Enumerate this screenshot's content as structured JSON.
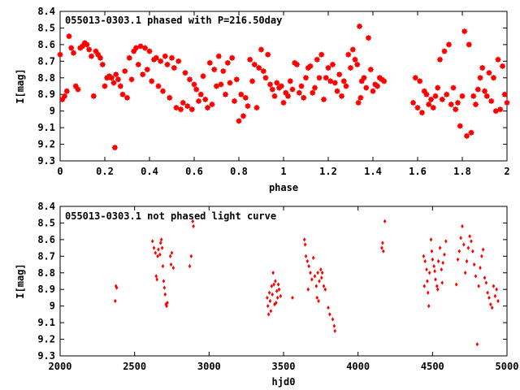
{
  "chart_data": [
    {
      "type": "scatter",
      "title": "055013-0303.1 phased with P=216.50day",
      "xlabel": "phase",
      "ylabel": "I[mag]",
      "xlim": [
        0,
        2
      ],
      "ylim": [
        9.3,
        8.4
      ],
      "y_inverted": true,
      "xticks": [
        "0",
        "0.2",
        "0.4",
        "0.6",
        "0.8",
        "1",
        "1.2",
        "1.4",
        "1.6",
        "1.8",
        "2"
      ],
      "yticks": [
        "8.4",
        "8.5",
        "8.6",
        "8.7",
        "8.8",
        "8.9",
        "9",
        "9.1",
        "9.2",
        "9.3"
      ],
      "grid": false,
      "color": "#ff0000",
      "points": [
        [
          0.0,
          8.66
        ],
        [
          0.01,
          8.93
        ],
        [
          0.02,
          8.91
        ],
        [
          0.03,
          8.88
        ],
        [
          0.04,
          8.55
        ],
        [
          0.05,
          8.62
        ],
        [
          0.06,
          8.65
        ],
        [
          0.07,
          8.85
        ],
        [
          0.08,
          8.87
        ],
        [
          0.09,
          8.62
        ],
        [
          0.1,
          8.61
        ],
        [
          0.11,
          8.59
        ],
        [
          0.12,
          8.6
        ],
        [
          0.13,
          8.63
        ],
        [
          0.14,
          8.67
        ],
        [
          0.15,
          8.91
        ],
        [
          0.16,
          8.64
        ],
        [
          0.17,
          8.66
        ],
        [
          0.18,
          8.68
        ],
        [
          0.19,
          8.72
        ],
        [
          0.2,
          8.85
        ],
        [
          0.21,
          8.8
        ],
        [
          0.22,
          8.79
        ],
        [
          0.23,
          8.8
        ],
        [
          0.24,
          8.83
        ],
        [
          0.245,
          9.22
        ],
        [
          0.25,
          8.78
        ],
        [
          0.26,
          8.81
        ],
        [
          0.27,
          8.85
        ],
        [
          0.28,
          8.9
        ],
        [
          0.29,
          8.76
        ],
        [
          0.3,
          8.92
        ],
        [
          0.31,
          8.68
        ],
        [
          0.32,
          8.81
        ],
        [
          0.33,
          8.64
        ],
        [
          0.34,
          8.62
        ],
        [
          0.35,
          8.72
        ],
        [
          0.36,
          8.61
        ],
        [
          0.37,
          8.78
        ],
        [
          0.38,
          8.62
        ],
        [
          0.39,
          8.75
        ],
        [
          0.4,
          8.64
        ],
        [
          0.41,
          8.82
        ],
        [
          0.42,
          8.69
        ],
        [
          0.43,
          8.68
        ],
        [
          0.44,
          8.85
        ],
        [
          0.45,
          8.7
        ],
        [
          0.46,
          8.88
        ],
        [
          0.47,
          8.67
        ],
        [
          0.48,
          8.72
        ],
        [
          0.49,
          8.92
        ],
        [
          0.5,
          8.68
        ],
        [
          0.51,
          8.74
        ],
        [
          0.52,
          8.98
        ],
        [
          0.53,
          8.7
        ],
        [
          0.54,
          8.99
        ],
        [
          0.55,
          8.95
        ],
        [
          0.56,
          8.77
        ],
        [
          0.57,
          8.97
        ],
        [
          0.58,
          8.81
        ],
        [
          0.59,
          8.99
        ],
        [
          0.6,
          8.84
        ],
        [
          0.61,
          8.87
        ],
        [
          0.62,
          8.94
        ],
        [
          0.63,
          8.9
        ],
        [
          0.64,
          8.79
        ],
        [
          0.65,
          8.93
        ],
        [
          0.66,
          8.98
        ],
        [
          0.67,
          8.71
        ],
        [
          0.68,
          8.96
        ],
        [
          0.69,
          8.75
        ],
        [
          0.7,
          8.85
        ],
        [
          0.71,
          8.67
        ],
        [
          0.72,
          8.84
        ],
        [
          0.73,
          8.76
        ],
        [
          0.74,
          8.9
        ],
        [
          0.75,
          8.71
        ],
        [
          0.76,
          8.83
        ],
        [
          0.77,
          8.68
        ],
        [
          0.78,
          8.94
        ],
        [
          0.79,
          8.81
        ],
        [
          0.8,
          9.06
        ],
        [
          0.81,
          8.9
        ],
        [
          0.82,
          9.03
        ],
        [
          0.83,
          8.92
        ],
        [
          0.84,
          8.97
        ],
        [
          0.85,
          8.69
        ],
        [
          0.86,
          8.82
        ],
        [
          0.87,
          8.72
        ],
        [
          0.88,
          8.98
        ],
        [
          0.89,
          8.74
        ],
        [
          0.9,
          8.63
        ],
        [
          0.91,
          8.76
        ],
        [
          0.92,
          8.8
        ],
        [
          0.93,
          8.66
        ],
        [
          0.94,
          8.84
        ],
        [
          0.95,
          8.87
        ],
        [
          0.96,
          8.91
        ],
        [
          0.97,
          8.83
        ],
        [
          0.98,
          8.86
        ],
        [
          0.99,
          8.85
        ],
        [
          1.0,
          8.95
        ],
        [
          1.01,
          8.89
        ],
        [
          1.02,
          8.91
        ],
        [
          1.03,
          8.82
        ],
        [
          1.04,
          8.87
        ],
        [
          1.05,
          8.71
        ],
        [
          1.06,
          8.72
        ],
        [
          1.07,
          8.89
        ],
        [
          1.08,
          8.85
        ],
        [
          1.09,
          8.92
        ],
        [
          1.1,
          8.8
        ],
        [
          1.11,
          8.74
        ],
        [
          1.12,
          8.73
        ],
        [
          1.13,
          8.89
        ],
        [
          1.14,
          8.86
        ],
        [
          1.15,
          8.69
        ],
        [
          1.16,
          8.8
        ],
        [
          1.17,
          8.66
        ],
        [
          1.18,
          8.93
        ],
        [
          1.19,
          8.8
        ],
        [
          1.2,
          8.74
        ],
        [
          1.21,
          8.82
        ],
        [
          1.22,
          8.72
        ],
        [
          1.23,
          8.83
        ],
        [
          1.24,
          8.88
        ],
        [
          1.25,
          8.78
        ],
        [
          1.26,
          8.91
        ],
        [
          1.27,
          8.82
        ],
        [
          1.28,
          8.85
        ],
        [
          1.29,
          8.66
        ],
        [
          1.3,
          8.74
        ],
        [
          1.31,
          8.63
        ],
        [
          1.32,
          8.69
        ],
        [
          1.33,
          8.72
        ],
        [
          1.335,
          8.95
        ],
        [
          1.34,
          8.49
        ],
        [
          1.345,
          8.92
        ],
        [
          1.35,
          8.82
        ],
        [
          1.36,
          8.8
        ],
        [
          1.37,
          8.86
        ],
        [
          1.38,
          8.56
        ],
        [
          1.39,
          8.75
        ],
        [
          1.4,
          8.88
        ],
        [
          1.41,
          8.84
        ],
        [
          1.42,
          8.85
        ],
        [
          1.43,
          8.8
        ],
        [
          1.44,
          8.81
        ],
        [
          1.45,
          8.82
        ],
        [
          1.58,
          8.95
        ],
        [
          1.59,
          8.8
        ],
        [
          1.6,
          8.98
        ],
        [
          1.61,
          8.82
        ],
        [
          1.62,
          9.01
        ],
        [
          1.63,
          8.88
        ],
        [
          1.64,
          8.9
        ],
        [
          1.65,
          8.96
        ],
        [
          1.66,
          8.93
        ],
        [
          1.67,
          8.98
        ],
        [
          1.68,
          8.91
        ],
        [
          1.69,
          8.86
        ],
        [
          1.7,
          8.69
        ],
        [
          1.71,
          8.93
        ],
        [
          1.72,
          8.64
        ],
        [
          1.73,
          8.9
        ],
        [
          1.74,
          8.6
        ],
        [
          1.75,
          8.96
        ],
        [
          1.76,
          8.86
        ],
        [
          1.77,
          8.99
        ],
        [
          1.78,
          8.95
        ],
        [
          1.79,
          9.09
        ],
        [
          1.8,
          8.91
        ],
        [
          1.81,
          8.52
        ],
        [
          1.82,
          9.15
        ],
        [
          1.83,
          8.6
        ],
        [
          1.84,
          9.13
        ],
        [
          1.85,
          8.91
        ],
        [
          1.86,
          8.96
        ],
        [
          1.87,
          8.87
        ],
        [
          1.88,
          8.8
        ],
        [
          1.89,
          8.74
        ],
        [
          1.9,
          8.88
        ],
        [
          1.91,
          8.91
        ],
        [
          1.92,
          8.77
        ],
        [
          1.93,
          8.94
        ],
        [
          1.94,
          8.8
        ],
        [
          1.95,
          9.0
        ],
        [
          1.96,
          8.69
        ],
        [
          1.97,
          8.99
        ],
        [
          1.98,
          8.73
        ],
        [
          1.99,
          8.9
        ],
        [
          2.0,
          8.95
        ]
      ]
    },
    {
      "type": "scatter",
      "title": "055013-0303.1 not phased light curve",
      "xlabel": "hjd0",
      "ylabel": "I[mag]",
      "xlim": [
        2000,
        5000
      ],
      "ylim": [
        9.3,
        8.4
      ],
      "y_inverted": true,
      "xticks": [
        "2000",
        "2500",
        "3000",
        "3500",
        "4000",
        "4500",
        "5000"
      ],
      "yticks": [
        "8.4",
        "8.5",
        "8.6",
        "8.7",
        "8.8",
        "8.9",
        "9",
        "9.1",
        "9.2",
        "9.3"
      ],
      "grid": false,
      "color": "#ff0000",
      "points": [
        [
          2370,
          8.97
        ],
        [
          2375,
          8.88
        ],
        [
          2380,
          8.89
        ],
        [
          2620,
          8.61
        ],
        [
          2630,
          8.65
        ],
        [
          2640,
          8.68
        ],
        [
          2645,
          8.82
        ],
        [
          2650,
          8.84
        ],
        [
          2655,
          8.7
        ],
        [
          2660,
          8.66
        ],
        [
          2670,
          8.69
        ],
        [
          2675,
          8.62
        ],
        [
          2680,
          8.6
        ],
        [
          2685,
          8.65
        ],
        [
          2690,
          8.76
        ],
        [
          2695,
          8.85
        ],
        [
          2700,
          8.89
        ],
        [
          2705,
          8.93
        ],
        [
          2710,
          8.99
        ],
        [
          2715,
          9.0
        ],
        [
          2720,
          8.98
        ],
        [
          2740,
          8.7
        ],
        [
          2745,
          8.75
        ],
        [
          2750,
          8.68
        ],
        [
          2760,
          8.77
        ],
        [
          2870,
          8.76
        ],
        [
          2880,
          8.7
        ],
        [
          2890,
          8.49
        ],
        [
          2895,
          8.52
        ],
        [
          3390,
          8.95
        ],
        [
          3395,
          9.0
        ],
        [
          3400,
          9.05
        ],
        [
          3405,
          8.92
        ],
        [
          3410,
          8.97
        ],
        [
          3415,
          9.03
        ],
        [
          3420,
          8.88
        ],
        [
          3425,
          8.93
        ],
        [
          3430,
          8.8
        ],
        [
          3435,
          8.87
        ],
        [
          3440,
          8.99
        ],
        [
          3445,
          8.85
        ],
        [
          3450,
          8.98
        ],
        [
          3455,
          8.91
        ],
        [
          3460,
          8.95
        ],
        [
          3465,
          8.87
        ],
        [
          3470,
          8.9
        ],
        [
          3480,
          8.94
        ],
        [
          3560,
          8.95
        ],
        [
          3640,
          8.6
        ],
        [
          3645,
          8.63
        ],
        [
          3650,
          8.7
        ],
        [
          3660,
          8.73
        ],
        [
          3665,
          8.9
        ],
        [
          3670,
          8.76
        ],
        [
          3680,
          8.8
        ],
        [
          3690,
          8.84
        ],
        [
          3700,
          8.71
        ],
        [
          3710,
          8.82
        ],
        [
          3720,
          8.88
        ],
        [
          3725,
          8.95
        ],
        [
          3730,
          8.8
        ],
        [
          3735,
          8.97
        ],
        [
          3740,
          8.85
        ],
        [
          3750,
          8.78
        ],
        [
          3755,
          8.83
        ],
        [
          3760,
          8.8
        ],
        [
          3770,
          8.88
        ],
        [
          3780,
          8.9
        ],
        [
          3800,
          9.01
        ],
        [
          3810,
          9.05
        ],
        [
          3830,
          9.08
        ],
        [
          3840,
          9.12
        ],
        [
          3845,
          9.15
        ],
        [
          4160,
          8.65
        ],
        [
          4165,
          8.62
        ],
        [
          4170,
          8.67
        ],
        [
          4180,
          8.49
        ],
        [
          4440,
          8.7
        ],
        [
          4445,
          8.88
        ],
        [
          4450,
          8.73
        ],
        [
          4460,
          8.78
        ],
        [
          4465,
          8.85
        ],
        [
          4470,
          8.92
        ],
        [
          4475,
          9.0
        ],
        [
          4480,
          8.8
        ],
        [
          4490,
          8.6
        ],
        [
          4495,
          8.67
        ],
        [
          4500,
          8.72
        ],
        [
          4510,
          8.76
        ],
        [
          4515,
          8.79
        ],
        [
          4520,
          8.84
        ],
        [
          4530,
          8.88
        ],
        [
          4535,
          8.9
        ],
        [
          4540,
          8.73
        ],
        [
          4550,
          8.65
        ],
        [
          4560,
          8.78
        ],
        [
          4565,
          8.86
        ],
        [
          4570,
          8.74
        ],
        [
          4580,
          8.69
        ],
        [
          4590,
          8.61
        ],
        [
          4660,
          8.87
        ],
        [
          4670,
          8.72
        ],
        [
          4680,
          8.67
        ],
        [
          4690,
          8.59
        ],
        [
          4700,
          8.52
        ],
        [
          4710,
          8.63
        ],
        [
          4720,
          8.8
        ],
        [
          4730,
          8.73
        ],
        [
          4740,
          8.65
        ],
        [
          4750,
          8.58
        ],
        [
          4760,
          8.61
        ],
        [
          4770,
          8.67
        ],
        [
          4780,
          8.75
        ],
        [
          4790,
          8.82
        ],
        [
          4800,
          9.23
        ],
        [
          4810,
          8.88
        ],
        [
          4820,
          8.77
        ],
        [
          4830,
          8.7
        ],
        [
          4840,
          8.66
        ],
        [
          4850,
          8.83
        ],
        [
          4860,
          8.86
        ],
        [
          4870,
          8.92
        ],
        [
          4880,
          8.95
        ],
        [
          4890,
          8.99
        ],
        [
          4900,
          9.01
        ],
        [
          4910,
          8.88
        ],
        [
          4920,
          8.94
        ],
        [
          4930,
          8.9
        ],
        [
          4940,
          8.97
        ]
      ]
    }
  ]
}
